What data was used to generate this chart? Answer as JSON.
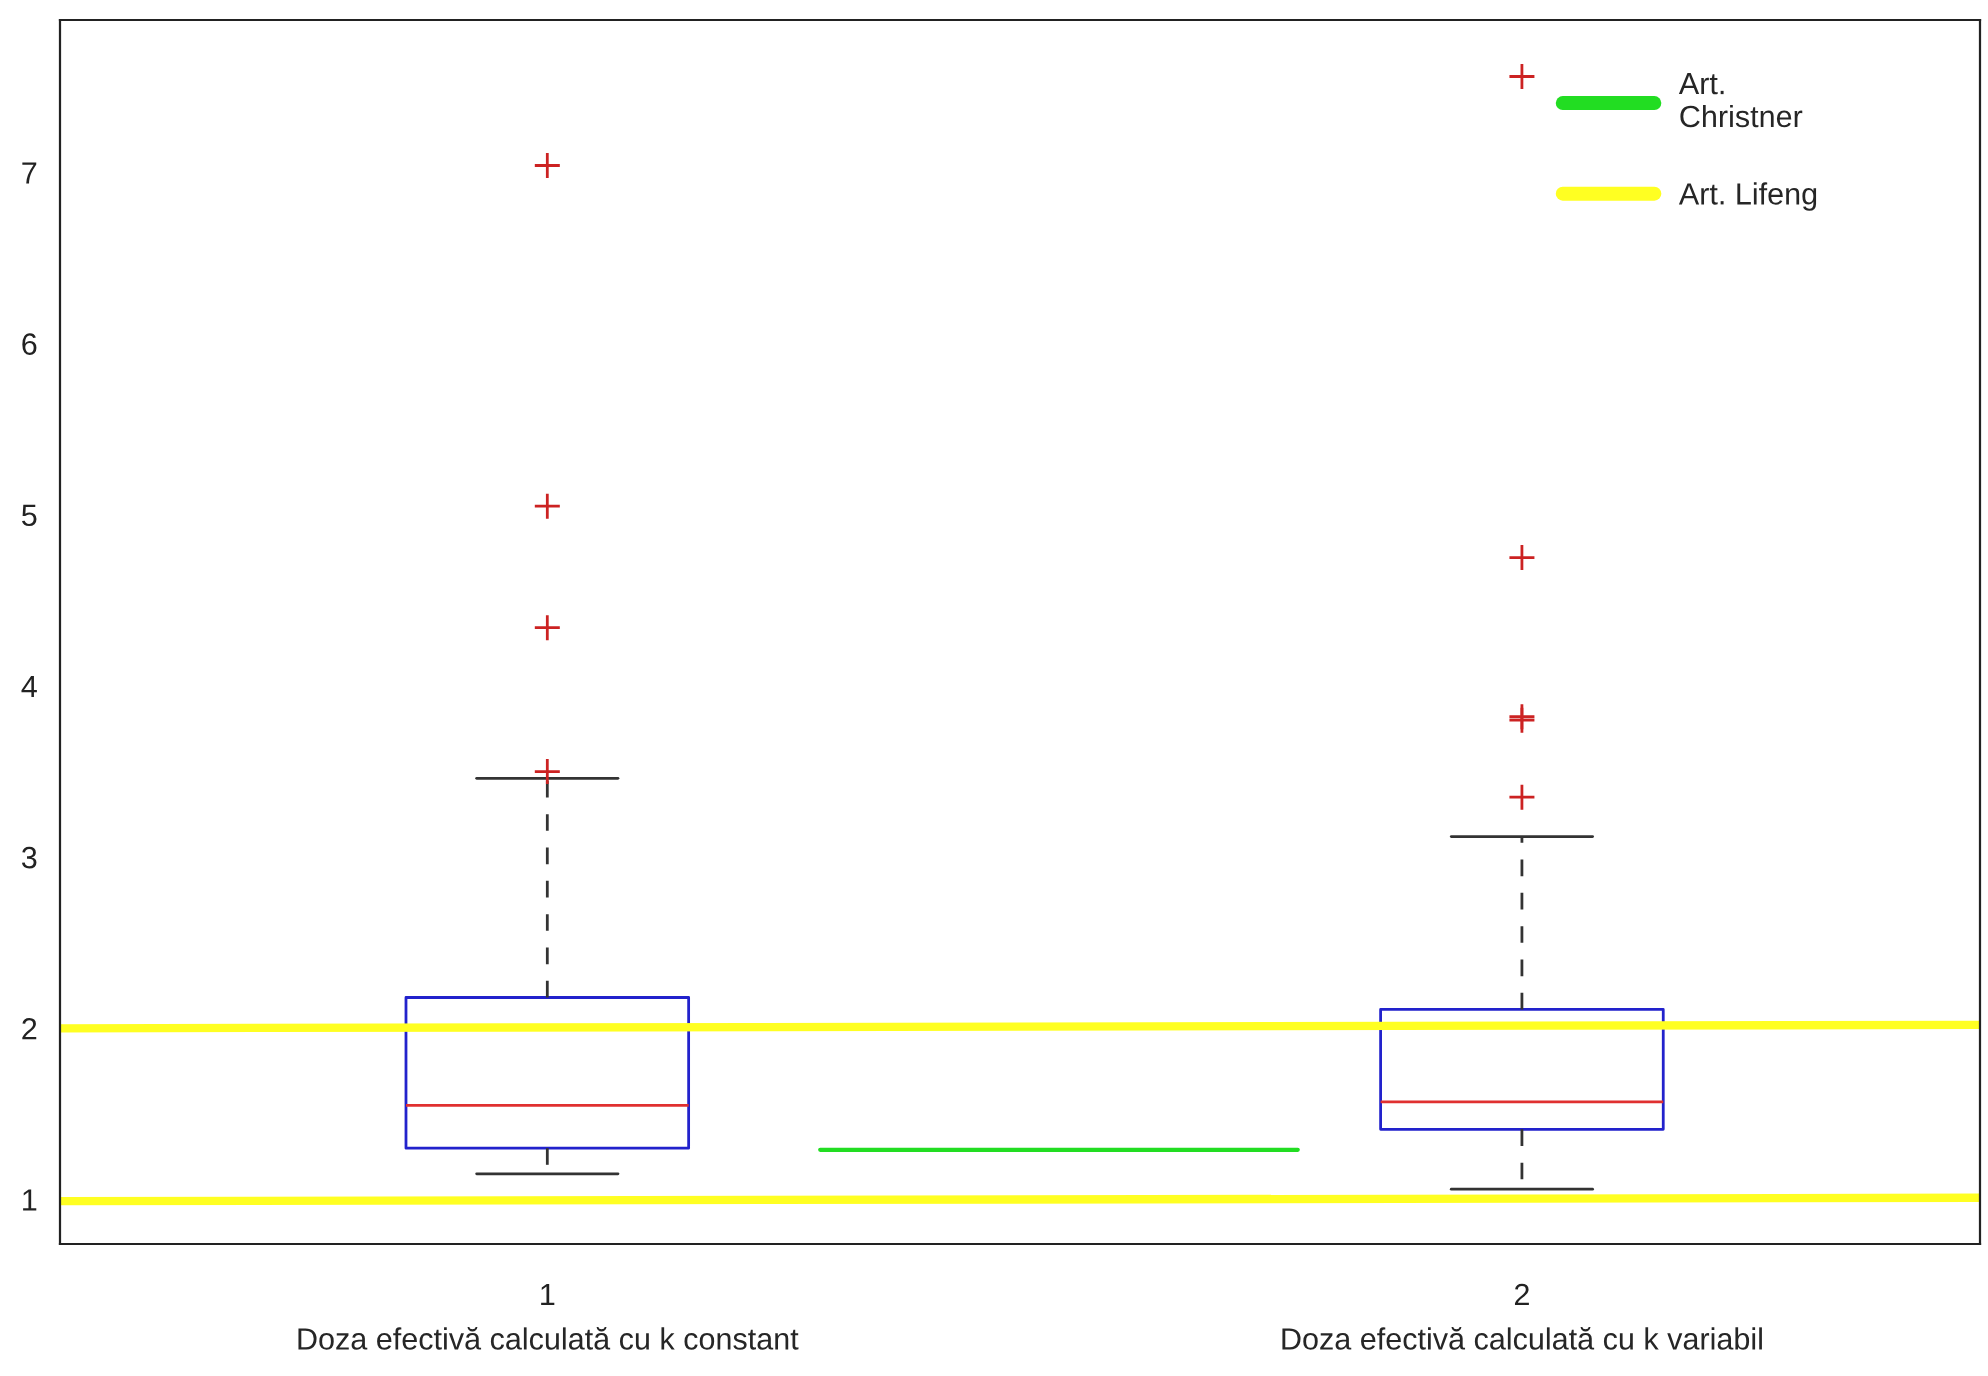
{
  "chart_data": {
    "type": "box",
    "x": [
      1,
      2
    ],
    "boxes": [
      {
        "low": 1.15,
        "q1": 1.3,
        "median": 1.55,
        "q3": 2.18,
        "high": 3.46,
        "outliers": [
          3.5,
          4.34,
          5.05,
          7.04
        ]
      },
      {
        "low": 1.06,
        "q1": 1.41,
        "median": 1.57,
        "q3": 2.11,
        "high": 3.12,
        "outliers": [
          3.35,
          3.8,
          3.82,
          4.75,
          7.56
        ]
      }
    ],
    "series": [
      {
        "name": "Art. Christner",
        "type": "line",
        "color": "#22dd22",
        "x": [
          1.28,
          1.77
        ],
        "values": [
          1.29,
          1.29
        ]
      },
      {
        "name": "Art. Lifeng",
        "type": "line",
        "color": "#ffff22",
        "x": [
          0.5,
          2.47
        ],
        "values": [
          2.0,
          2.02
        ]
      },
      {
        "type": "line",
        "color": "#ffff22",
        "x": [
          0.5,
          2.47
        ],
        "values": [
          0.99,
          1.01
        ]
      }
    ],
    "xlim": [
      0.5,
      2.47
    ],
    "xticks": [
      1,
      2
    ],
    "ylim": [
      0.74,
      7.89
    ],
    "yticks": [
      1,
      2,
      3,
      4,
      5,
      6,
      7
    ],
    "annotations": [
      "Doza efectivă calculată cu k constant",
      "Doza efectivă calculată cu k variabil"
    ],
    "legend": "top right",
    "grid": false
  }
}
